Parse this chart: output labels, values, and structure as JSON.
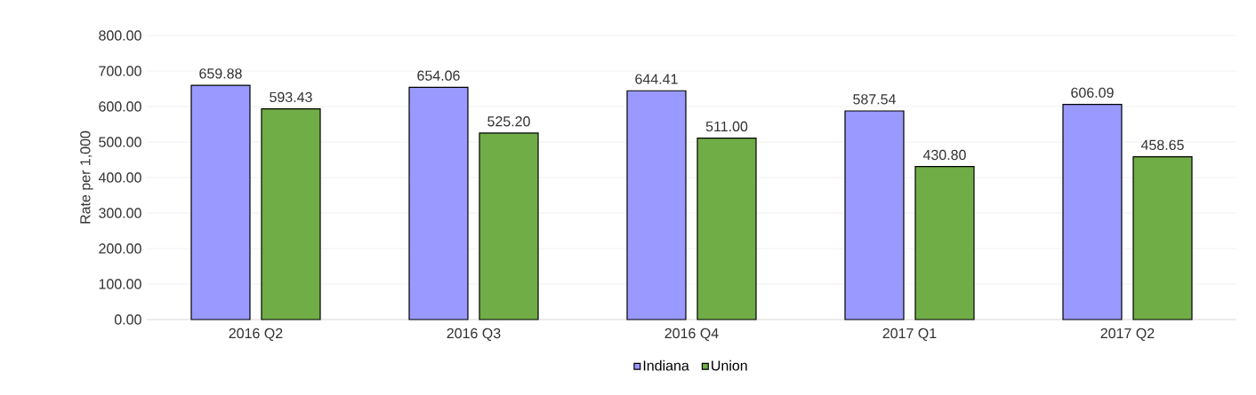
{
  "chart_data": {
    "type": "bar",
    "ylabel": "Rate per 1,000",
    "categories": [
      "2016 Q2",
      "2016 Q3",
      "2016 Q4",
      "2017 Q1",
      "2017 Q2"
    ],
    "series": [
      {
        "name": "Indiana",
        "color": "#9999ff",
        "values": [
          659.88,
          654.06,
          644.41,
          587.54,
          606.09
        ],
        "value_labels": [
          "659.88",
          "654.06",
          "644.41",
          "587.54",
          "606.09"
        ]
      },
      {
        "name": "Union",
        "color": "#70ad47",
        "values": [
          593.43,
          525.2,
          511.0,
          430.8,
          458.65
        ],
        "value_labels": [
          "593.43",
          "525.20",
          "511.00",
          "430.80",
          "458.65"
        ]
      }
    ],
    "ylim": [
      0,
      800
    ],
    "yticks": [
      {
        "value": 0,
        "label": "0.00"
      },
      {
        "value": 100,
        "label": "100.00"
      },
      {
        "value": 200,
        "label": "200.00"
      },
      {
        "value": 300,
        "label": "300.00"
      },
      {
        "value": 400,
        "label": "400.00"
      },
      {
        "value": 500,
        "label": "500.00"
      },
      {
        "value": 600,
        "label": "600.00"
      },
      {
        "value": 700,
        "label": "700.00"
      },
      {
        "value": 800,
        "label": "800.00"
      }
    ],
    "grid": "y",
    "legend": "bottom"
  }
}
